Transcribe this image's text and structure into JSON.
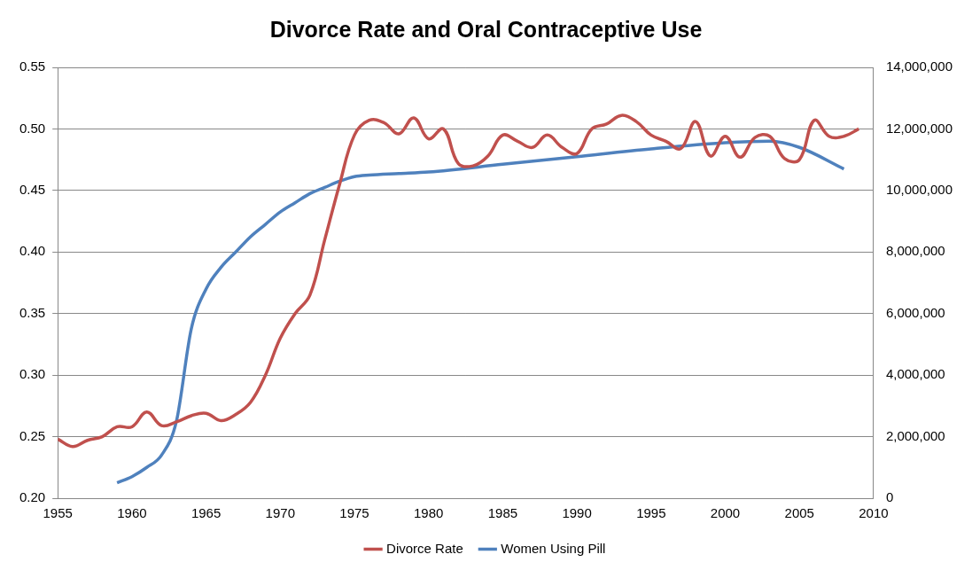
{
  "chart_data": {
    "type": "line",
    "title": "Divorce Rate and Oral Contraceptive Use",
    "series": [
      {
        "name": "Divorce Rate",
        "color": "#c0504d",
        "axis": "y",
        "x": [
          1955,
          1956,
          1957,
          1958,
          1959,
          1960,
          1961,
          1962,
          1963,
          1964,
          1965,
          1966,
          1967,
          1968,
          1969,
          1970,
          1971,
          1972,
          1973,
          1974,
          1975,
          1976,
          1977,
          1978,
          1979,
          1980,
          1981,
          1982,
          1983,
          1984,
          1985,
          1986,
          1987,
          1988,
          1989,
          1990,
          1991,
          1992,
          1993,
          1994,
          1995,
          1996,
          1997,
          1998,
          1999,
          2000,
          2001,
          2002,
          2003,
          2004,
          2005,
          2006,
          2007,
          2008,
          2009
        ],
        "values": [
          0.248,
          0.242,
          0.247,
          0.25,
          0.258,
          0.258,
          0.27,
          0.259,
          0.262,
          0.267,
          0.269,
          0.263,
          0.268,
          0.278,
          0.3,
          0.33,
          0.35,
          0.365,
          0.41,
          0.455,
          0.495,
          0.507,
          0.505,
          0.496,
          0.509,
          0.492,
          0.5,
          0.472,
          0.47,
          0.478,
          0.495,
          0.49,
          0.485,
          0.495,
          0.485,
          0.48,
          0.5,
          0.504,
          0.511,
          0.506,
          0.495,
          0.49,
          0.484,
          0.506,
          0.478,
          0.494,
          0.477,
          0.493,
          0.494,
          0.476,
          0.475,
          0.507,
          0.494,
          0.494,
          0.5
        ]
      },
      {
        "name": "Women Using Pill",
        "color": "#4f81bd",
        "axis": "y2",
        "x": [
          1959,
          1960,
          1961,
          1962,
          1963,
          1964,
          1965,
          1966,
          1967,
          1968,
          1969,
          1970,
          1971,
          1972,
          1973,
          1974,
          1975,
          1976,
          1978,
          1980,
          1985,
          1990,
          1995,
          2000,
          2003,
          2005,
          2008
        ],
        "values": [
          500000,
          700000,
          1000000,
          1400000,
          2500000,
          5500000,
          6800000,
          7500000,
          8000000,
          8500000,
          8900000,
          9300000,
          9600000,
          9900000,
          10100000,
          10300000,
          10450000,
          10500000,
          10550000,
          10600000,
          10850000,
          11100000,
          11350000,
          11550000,
          11600000,
          11400000,
          10700000
        ]
      }
    ],
    "xlim": [
      1955,
      2010
    ],
    "xticks": [
      1955,
      1960,
      1965,
      1970,
      1975,
      1980,
      1985,
      1990,
      1995,
      2000,
      2005,
      2010
    ],
    "ylim": [
      0.2,
      0.55
    ],
    "yticks": [
      {
        "value": 0.2,
        "label": "0.20"
      },
      0.25,
      {
        "value": 0.3,
        "label": "0.30"
      },
      0.35,
      {
        "value": 0.4,
        "label": "0.40"
      },
      0.45,
      {
        "value": 0.5,
        "label": "0.50"
      },
      0.55
    ],
    "y2lim": [
      0,
      14000000
    ],
    "y2ticks": [
      0,
      {
        "value": 2000000,
        "label": "2,000,000"
      },
      {
        "value": 4000000,
        "label": "4,000,000"
      },
      {
        "value": 6000000,
        "label": "6,000,000"
      },
      {
        "value": 8000000,
        "label": "8,000,000"
      },
      {
        "value": 10000000,
        "label": "10,000,000"
      },
      {
        "value": 12000000,
        "label": "12,000,000"
      },
      {
        "value": 14000000,
        "label": "14,000,000"
      }
    ],
    "grid": true,
    "legend": "bottom"
  }
}
